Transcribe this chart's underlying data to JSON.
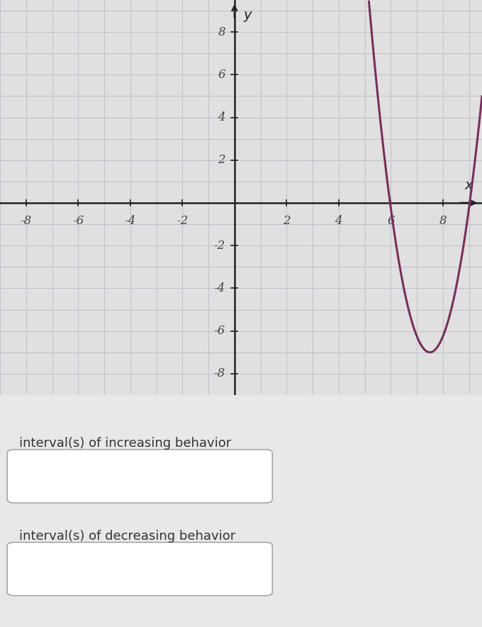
{
  "curve_color": "#7B2D5A",
  "curve_linewidth": 2.2,
  "xlim": [
    -9,
    9.5
  ],
  "ylim": [
    -9,
    9.5
  ],
  "xticks": [
    -8,
    -6,
    -4,
    -2,
    2,
    4,
    6,
    8
  ],
  "yticks": [
    -8,
    -6,
    -4,
    -2,
    2,
    4,
    6,
    8
  ],
  "grid_color": "#c0c0cc",
  "grid_linewidth": 0.7,
  "axis_color": "#222222",
  "tick_fontsize": 12,
  "background_color": "#e8e8e8",
  "plot_bg_color": "#e0e0e0",
  "vertex_x": 7.5,
  "vertex_y": -7.0,
  "parabola_a": 3.0,
  "xlabel": "x",
  "ylabel": "y",
  "text_label1": "interval(s) of increasing behavior",
  "text_label2": "interval(s) of decreasing behavior"
}
